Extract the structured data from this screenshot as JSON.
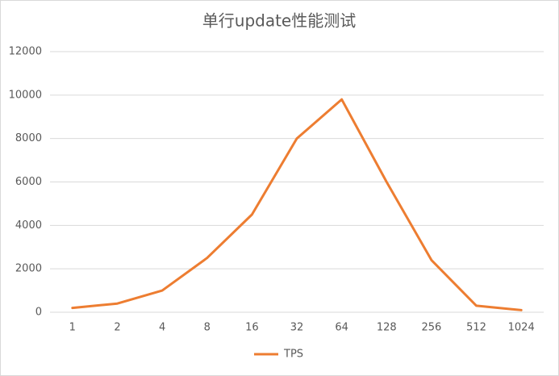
{
  "chart_data": {
    "type": "line",
    "title": "单行update性能测试",
    "categories": [
      "1",
      "2",
      "4",
      "8",
      "16",
      "32",
      "64",
      "128",
      "256",
      "512",
      "1024"
    ],
    "series": [
      {
        "name": "TPS",
        "color": "#ed7d31",
        "values": [
          200,
          400,
          1000,
          2500,
          4500,
          8000,
          9800,
          6000,
          2400,
          300,
          100
        ]
      }
    ],
    "ylim": [
      0,
      12000
    ],
    "yticks": [
      0,
      2000,
      4000,
      6000,
      8000,
      10000,
      12000
    ],
    "grid": true,
    "legend": "bottom"
  }
}
